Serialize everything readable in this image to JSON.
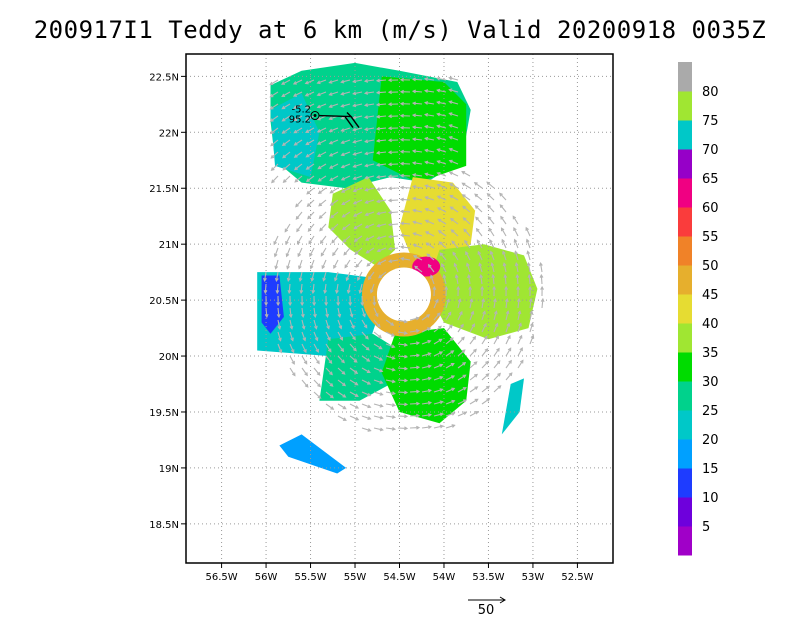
{
  "chart_data": {
    "type": "heatmap",
    "title": "200917I1 Teddy at 6 km (m/s) Valid 20200918 0035Z",
    "storm_id": "200917I1",
    "storm_name": "Teddy",
    "level": "6 km",
    "units": "m/s",
    "valid_time": "20200918 0035Z",
    "x_axis": {
      "ticks": [
        -56.5,
        -56,
        -55.5,
        -55,
        -54.5,
        -54,
        -53.5,
        -53,
        -52.5
      ],
      "tick_labels": [
        "56.5W",
        "56W",
        "55.5W",
        "55W",
        "54.5W",
        "54W",
        "53.5W",
        "53W",
        "52.5W"
      ],
      "range": [
        -56.9,
        -52.1
      ]
    },
    "y_axis": {
      "ticks": [
        18.5,
        19,
        19.5,
        20,
        20.5,
        21,
        21.5,
        22,
        22.5
      ],
      "tick_labels": [
        "18.5N",
        "19N",
        "19.5N",
        "20N",
        "20.5N",
        "21N",
        "21.5N",
        "22N",
        "22.5N"
      ],
      "range": [
        18.15,
        22.7
      ]
    },
    "grid": true,
    "colorbar": {
      "levels": [
        5,
        10,
        15,
        20,
        25,
        30,
        35,
        40,
        45,
        50,
        55,
        60,
        65,
        70,
        75,
        80
      ],
      "labels": [
        "5",
        "10",
        "15",
        "20",
        "25",
        "30",
        "35",
        "40",
        "45",
        "50",
        "55",
        "60",
        "65",
        "70",
        "75",
        "80"
      ],
      "colors": [
        "#a000c8",
        "#6e00dc",
        "#1e3cff",
        "#00a0ff",
        "#00c8c8",
        "#00d28c",
        "#00dc00",
        "#a0e632",
        "#e6dc32",
        "#e6af2d",
        "#f08228",
        "#fa3c3c",
        "#f00082",
        "#9600c8",
        "#00c8c8",
        "#a0e632",
        "#aaaaaa"
      ]
    },
    "reference_vector": {
      "label": "50",
      "magnitude": 50
    },
    "annotation": {
      "lines": [
        "-5.2",
        "95.2"
      ],
      "lon": -55.45,
      "lat": 22.15
    },
    "center": {
      "lon": -54.45,
      "lat": 20.55
    },
    "regions": [
      {
        "name": "north-band",
        "lon": -55.4,
        "lat": 22.05,
        "value": 27
      },
      {
        "name": "north-band-east",
        "lon": -54.3,
        "lat": 22.1,
        "value": 30
      },
      {
        "name": "north-band-west",
        "lon": -55.8,
        "lat": 21.9,
        "value": 24
      },
      {
        "name": "nw-arm",
        "lon": -55.0,
        "lat": 21.25,
        "value": 38
      },
      {
        "name": "ne-arm",
        "lon": -54.0,
        "lat": 21.2,
        "value": 42
      },
      {
        "name": "east-arm",
        "lon": -53.55,
        "lat": 20.55,
        "value": 36
      },
      {
        "name": "west-band",
        "lon": -55.5,
        "lat": 20.45,
        "value": 22
      },
      {
        "name": "west-core",
        "lon": -56.0,
        "lat": 20.5,
        "value": 12
      },
      {
        "name": "sw-arm",
        "lon": -55.0,
        "lat": 19.85,
        "value": 26
      },
      {
        "name": "south-arm",
        "lon": -54.1,
        "lat": 19.75,
        "value": 33
      },
      {
        "name": "eyewall",
        "lon": -54.4,
        "lat": 20.55,
        "value": 47
      },
      {
        "name": "eyewall-peak",
        "lon": -54.2,
        "lat": 20.8,
        "value": 62
      },
      {
        "name": "small-sw",
        "lon": -55.6,
        "lat": 19.1,
        "value": 17
      },
      {
        "name": "small-se",
        "lon": -53.2,
        "lat": 19.55,
        "value": 23
      }
    ]
  }
}
